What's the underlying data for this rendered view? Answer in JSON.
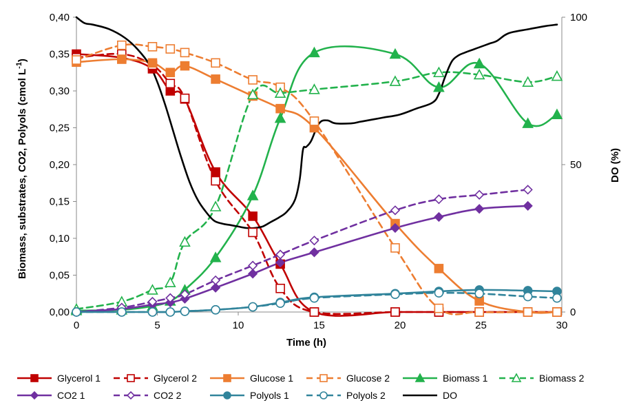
{
  "chart_data": {
    "type": "line",
    "xlabel": "Time (h)",
    "ylabel_left_prefix": "Biomass, substrates, CO2, Polyols (cmol L",
    "ylabel_left_sup": "-1",
    "ylabel_left_suffix": ")",
    "ylabel_right": "DO (%)",
    "xlim": [
      0,
      30
    ],
    "ylim_left": [
      0,
      0.4
    ],
    "ylim_right": [
      0,
      100
    ],
    "x_ticks": [
      {
        "value": 0,
        "label": "0"
      },
      {
        "value": 5,
        "label": "5"
      },
      {
        "value": 10,
        "label": "10"
      },
      {
        "value": 15,
        "label": "15"
      },
      {
        "value": 20,
        "label": "20"
      },
      {
        "value": 25,
        "label": "25"
      },
      {
        "value": 30,
        "label": "30"
      }
    ],
    "y_left_ticks": [
      {
        "value": 0,
        "label": "0,00"
      },
      {
        "value": 0.05,
        "label": "0,05"
      },
      {
        "value": 0.1,
        "label": "0,10"
      },
      {
        "value": 0.15,
        "label": "0,15"
      },
      {
        "value": 0.2,
        "label": "0,20"
      },
      {
        "value": 0.25,
        "label": "0,25"
      },
      {
        "value": 0.3,
        "label": "0,30"
      },
      {
        "value": 0.35,
        "label": "0,35"
      },
      {
        "value": 0.4,
        "label": "0,40"
      }
    ],
    "y_right_ticks": [
      {
        "value": 0,
        "label": "0"
      },
      {
        "value": 50,
        "label": "50"
      },
      {
        "value": 100,
        "label": "100"
      }
    ],
    "grid": false,
    "legend_position": "bottom",
    "series": [
      {
        "name": "Glycerol 1",
        "color": "#c00000",
        "dash": false,
        "marker": "square",
        "filled": true,
        "axis": "left",
        "x": [
          0,
          2.8,
          4.7,
          5.8,
          6.7,
          8.6,
          10.9,
          12.6,
          14.7,
          19.7,
          22.4,
          24.9,
          27.9,
          29.7
        ],
        "y": [
          0.35,
          0.345,
          0.33,
          0.3,
          0.289,
          0.19,
          0.13,
          0.065,
          0.0,
          0.0,
          0.0,
          0.0,
          0.0,
          0.0
        ]
      },
      {
        "name": "Glycerol 2",
        "color": "#c00000",
        "dash": true,
        "marker": "square",
        "filled": false,
        "axis": "left",
        "x": [
          0,
          2.8,
          4.7,
          5.8,
          6.7,
          8.6,
          10.9,
          12.6,
          14.7,
          19.7,
          22.4,
          24.9,
          27.9,
          29.7
        ],
        "y": [
          0.345,
          0.35,
          0.335,
          0.31,
          0.29,
          0.178,
          0.108,
          0.032,
          0.0,
          0.0,
          0.0,
          0.0,
          0.0,
          0.0
        ]
      },
      {
        "name": "Glucose 1",
        "color": "#ed7d31",
        "dash": false,
        "marker": "square",
        "filled": true,
        "axis": "left",
        "x": [
          0,
          2.8,
          4.7,
          5.8,
          6.7,
          8.6,
          10.9,
          12.6,
          14.7,
          19.7,
          22.4,
          24.9,
          27.9,
          29.7
        ],
        "y": [
          0.339,
          0.343,
          0.338,
          0.325,
          0.334,
          0.316,
          0.293,
          0.276,
          0.25,
          0.12,
          0.059,
          0.015,
          0.0,
          0.0
        ]
      },
      {
        "name": "Glucose 2",
        "color": "#ed7d31",
        "dash": true,
        "marker": "square",
        "filled": false,
        "axis": "left",
        "x": [
          0,
          2.8,
          4.7,
          5.8,
          6.7,
          8.6,
          10.9,
          12.6,
          14.7,
          19.7,
          22.4,
          24.9,
          27.9,
          29.7
        ],
        "y": [
          0.342,
          0.362,
          0.36,
          0.357,
          0.352,
          0.338,
          0.315,
          0.305,
          0.259,
          0.087,
          0.005,
          0.0,
          0.0,
          0.0
        ]
      },
      {
        "name": "Biomass 1",
        "color": "#22b24c",
        "dash": false,
        "marker": "triangle",
        "filled": true,
        "axis": "left",
        "x": [
          0,
          2.8,
          4.7,
          5.8,
          6.7,
          8.6,
          10.9,
          12.6,
          14.7,
          19.7,
          22.4,
          24.9,
          27.9,
          29.7
        ],
        "y": [
          0.002,
          0.003,
          0.008,
          0.015,
          0.03,
          0.074,
          0.158,
          0.263,
          0.352,
          0.35,
          0.305,
          0.337,
          0.256,
          0.268
        ]
      },
      {
        "name": "Biomass 2",
        "color": "#22b24c",
        "dash": true,
        "marker": "triangle",
        "filled": false,
        "axis": "left",
        "x": [
          0,
          2.8,
          4.7,
          5.8,
          6.7,
          8.6,
          10.9,
          12.6,
          14.7,
          19.7,
          22.4,
          24.9,
          27.9,
          29.7
        ],
        "y": [
          0.004,
          0.014,
          0.03,
          0.04,
          0.095,
          0.143,
          0.295,
          0.297,
          0.302,
          0.313,
          0.325,
          0.322,
          0.312,
          0.32
        ]
      },
      {
        "name": "CO2 1",
        "color": "#7030a0",
        "dash": false,
        "marker": "diamond",
        "filled": true,
        "axis": "left",
        "x": [
          0,
          2.8,
          4.7,
          5.8,
          6.7,
          8.6,
          10.9,
          12.6,
          14.7,
          19.7,
          22.4,
          24.9,
          27.9
        ],
        "y": [
          0.0,
          0.004,
          0.01,
          0.013,
          0.018,
          0.033,
          0.052,
          0.067,
          0.081,
          0.114,
          0.129,
          0.14,
          0.144
        ]
      },
      {
        "name": "CO2 2",
        "color": "#7030a0",
        "dash": true,
        "marker": "diamond",
        "filled": false,
        "axis": "left",
        "x": [
          0,
          2.8,
          4.7,
          5.8,
          6.7,
          8.6,
          10.9,
          12.6,
          14.7,
          19.7,
          22.4,
          24.9,
          27.9
        ],
        "y": [
          0.0,
          0.006,
          0.014,
          0.019,
          0.024,
          0.043,
          0.063,
          0.078,
          0.097,
          0.138,
          0.153,
          0.159,
          0.166
        ]
      },
      {
        "name": "Polyols 1",
        "color": "#31849b",
        "dash": false,
        "marker": "circle",
        "filled": true,
        "axis": "left",
        "x": [
          0,
          2.8,
          4.7,
          5.8,
          6.7,
          8.6,
          10.9,
          12.6,
          14.7,
          19.7,
          22.4,
          24.9,
          27.9,
          29.7
        ],
        "y": [
          0.0,
          0.0,
          0.0,
          0.0,
          0.001,
          0.003,
          0.007,
          0.013,
          0.02,
          0.025,
          0.028,
          0.03,
          0.029,
          0.028
        ]
      },
      {
        "name": "Polyols 2",
        "color": "#31849b",
        "dash": true,
        "marker": "circle",
        "filled": false,
        "axis": "left",
        "x": [
          0,
          2.8,
          4.7,
          5.8,
          6.7,
          8.6,
          10.9,
          12.6,
          14.7,
          19.7,
          22.4,
          24.9,
          27.9,
          29.7
        ],
        "y": [
          0.0,
          0.0,
          0.0,
          0.0,
          0.001,
          0.003,
          0.007,
          0.012,
          0.019,
          0.024,
          0.026,
          0.025,
          0.021,
          0.019
        ]
      },
      {
        "name": "DO",
        "color": "#000000",
        "dash": false,
        "marker": "none",
        "filled": false,
        "axis": "right",
        "thick": true,
        "x": [
          0,
          0.5,
          1,
          2,
          3,
          3.8,
          4.5,
          5,
          5.5,
          6,
          6.5,
          7,
          7.5,
          8,
          8.5,
          9,
          9.5,
          10,
          10.5,
          11,
          11.5,
          12,
          12.5,
          13,
          13.5,
          13.8,
          14,
          14.2,
          14.5,
          15,
          15.5,
          16,
          17,
          17.5,
          18,
          18.5,
          19,
          20,
          21,
          22,
          22.4,
          22.8,
          23.2,
          23.6,
          24,
          24.5,
          25,
          25.5,
          26,
          26.5,
          27,
          28,
          29,
          29.7
        ],
        "y": [
          100,
          98,
          97.5,
          96,
          93,
          89,
          84,
          78,
          70,
          61,
          52,
          44,
          38,
          34,
          31,
          30,
          29.5,
          29,
          28.5,
          28.5,
          29,
          30.5,
          32,
          34,
          38,
          45,
          55,
          56,
          58,
          64,
          65,
          64,
          64,
          64.5,
          65,
          65.5,
          66,
          67,
          69,
          71,
          74,
          80,
          85,
          87,
          88,
          89,
          90,
          91,
          92,
          94,
          95,
          96,
          97,
          97.5
        ]
      }
    ]
  }
}
